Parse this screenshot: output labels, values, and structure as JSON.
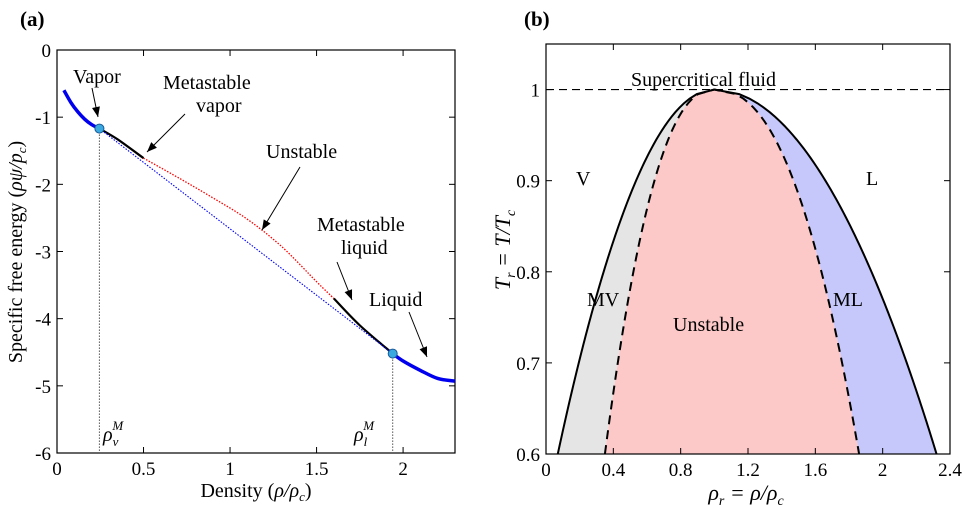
{
  "panel_a": {
    "tag": "(a)",
    "ylabel_text": "Specific free energy (",
    "ylabel_math": "ρψ/p",
    "ylabel_sub": "c",
    "ylabel_close": ")",
    "xlabel_text": "Density (",
    "xlabel_math": "ρ/ρ",
    "xlabel_sub": "c",
    "xlabel_close": ")",
    "annotations": {
      "vapor": "Vapor",
      "metastable_vapor_1": "Metastable",
      "metastable_vapor_2": "vapor",
      "unstable": "Unstable",
      "metastable_liquid_1": "Metastable",
      "metastable_liquid_2": "liquid",
      "liquid": "Liquid",
      "rho_v": "ρ",
      "rho_v_sub": "v",
      "rho_v_sup": "M",
      "rho_l": "ρ",
      "rho_l_sub": "l",
      "rho_l_sup": "M"
    }
  },
  "panel_b": {
    "tag": "(b)",
    "ylabel": "T",
    "ylabel_sub": "r",
    "ylabel_eq": " = T/T",
    "ylabel_sub2": "c",
    "xlabel": "ρ",
    "xlabel_sub": "r",
    "xlabel_eq": " = ρ/ρ",
    "xlabel_sub2": "c",
    "regions": {
      "supercritical": "Supercritical fluid",
      "V": "V",
      "L": "L",
      "MV": "MV",
      "ML": "ML",
      "unstable": "Unstable"
    }
  },
  "colors": {
    "stable_curve": "#0000ee",
    "unstable_curve": "#ff0000",
    "common_tangent": "#0000ff",
    "point_fill": "#3aa9e0",
    "mv_fill": "#e5e5e5",
    "unstable_fill": "#fcc8c8",
    "ml_fill": "#c6c8fb"
  },
  "chart_data": [
    {
      "type": "line",
      "xlim": [
        0,
        2.3
      ],
      "ylim": [
        -6,
        0
      ],
      "x_ticks": [
        0,
        0.5,
        1,
        1.5,
        2
      ],
      "x_tick_labels": [
        "0",
        "0.5",
        "1",
        "1.5",
        "2"
      ],
      "y_ticks": [
        0,
        -1,
        -2,
        -3,
        -4,
        -5,
        -6
      ],
      "y_tick_labels": [
        "0",
        "-1",
        "-2",
        "-3",
        "-4",
        "-5",
        "-6"
      ],
      "series": [
        {
          "style": "stable-vapor",
          "points": [
            [
              0.04,
              -0.6
            ],
            [
              0.08,
              -0.78
            ],
            [
              0.12,
              -0.92
            ],
            [
              0.16,
              -1.03
            ],
            [
              0.2,
              -1.11
            ],
            [
              0.245,
              -1.17
            ]
          ]
        },
        {
          "style": "metastable-vapor",
          "points": [
            [
              0.245,
              -1.17
            ],
            [
              0.35,
              -1.33
            ],
            [
              0.5,
              -1.61
            ]
          ]
        },
        {
          "style": "unstable",
          "points": [
            [
              0.5,
              -1.61
            ],
            [
              0.7,
              -1.9
            ],
            [
              0.9,
              -2.2
            ],
            [
              1.1,
              -2.52
            ],
            [
              1.3,
              -2.93
            ],
            [
              1.5,
              -3.45
            ],
            [
              1.6,
              -3.7
            ]
          ]
        },
        {
          "style": "metastable-liquid",
          "points": [
            [
              1.6,
              -3.7
            ],
            [
              1.75,
              -4.1
            ],
            [
              1.94,
              -4.52
            ]
          ]
        },
        {
          "style": "stable-liquid",
          "points": [
            [
              1.94,
              -4.52
            ],
            [
              2.0,
              -4.63
            ],
            [
              2.1,
              -4.77
            ],
            [
              2.2,
              -4.89
            ],
            [
              2.3,
              -4.93
            ]
          ]
        },
        {
          "style": "common-tangent",
          "points": [
            [
              0.245,
              -1.17
            ],
            [
              1.94,
              -4.52
            ]
          ]
        }
      ],
      "markers": [
        [
          0.245,
          -1.17
        ],
        [
          1.94,
          -4.52
        ]
      ],
      "vertical_refs": [
        0.245,
        1.94
      ]
    },
    {
      "type": "area",
      "xlim": [
        0,
        2.4
      ],
      "ylim": [
        0.6,
        1.05
      ],
      "x_ticks": [
        0,
        0.4,
        0.8,
        1.2,
        1.6,
        2,
        2.4
      ],
      "x_tick_labels": [
        "0",
        "0.4",
        "0.8",
        "1.2",
        "1.6",
        "2",
        "2.4"
      ],
      "y_ticks": [
        0.6,
        0.7,
        0.8,
        0.9,
        1.0
      ],
      "y_tick_labels": [
        "0.6",
        "0.7",
        "0.8",
        "0.9",
        "1"
      ],
      "critical_point": [
        1.0,
        1.0
      ],
      "binodal": {
        "left_at_0_6": 0.07,
        "right_at_0_6": 2.32,
        "exponent": 2
      },
      "spinodal": {
        "left_at_0_6": 0.35,
        "right_at_0_6": 1.86,
        "exponent": 2.3
      },
      "supercritical_line_y": 1.0
    }
  ]
}
